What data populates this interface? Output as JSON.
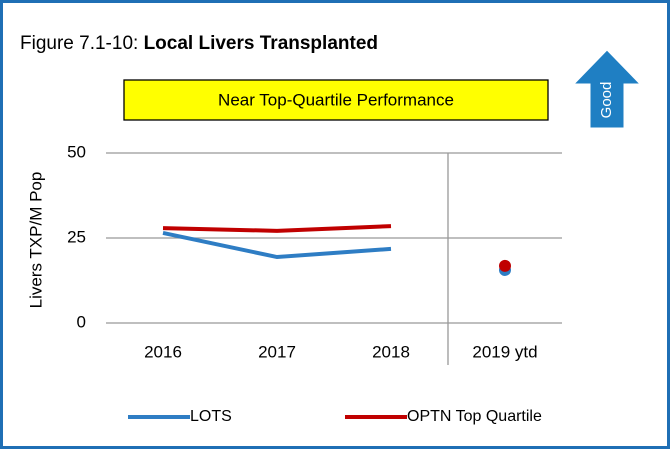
{
  "chart_data": {
    "type": "line",
    "figure_label": "Figure 7.1-10:",
    "title": "Local Livers Transplanted",
    "annotation": "Near Top-Quartile Performance",
    "direction_label": "Good",
    "y_label": "Livers TXP/M Pop",
    "categories": [
      "2016",
      "2017",
      "2018",
      "2019 ytd"
    ],
    "divider_before": 3,
    "series": [
      {
        "name": "LOTS",
        "color": "#2e7dc4",
        "values": [
          26.5,
          19.4,
          21.8,
          15.6
        ]
      },
      {
        "name": "OPTN Top Quartile",
        "color": "#c00000",
        "values": [
          27.9,
          27.1,
          28.5,
          16.8
        ]
      }
    ],
    "ylim": [
      0,
      50
    ],
    "yticks": [
      0,
      25,
      50
    ],
    "grid": true,
    "legend": "bottom"
  }
}
